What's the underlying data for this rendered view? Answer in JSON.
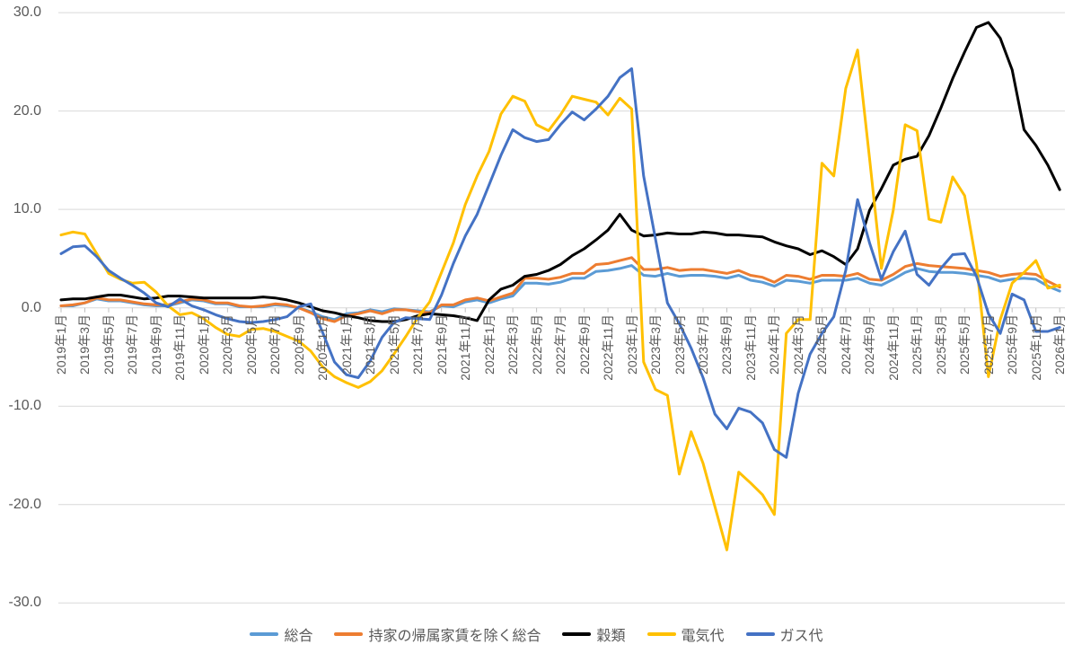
{
  "chart_data": {
    "type": "line",
    "title": "",
    "xlabel": "",
    "ylabel": "",
    "ylim": [
      -30,
      30
    ],
    "grid": true,
    "legend_position": "bottom",
    "colors": {
      "text": "#595959",
      "gridline": "#D9D9D9",
      "tick": "#BFBFBF",
      "background": "#FFFFFF"
    },
    "y_ticks": [
      {
        "label": "30.0",
        "value": 30
      },
      {
        "label": "20.0",
        "value": 20
      },
      {
        "label": "10.0",
        "value": 10
      },
      {
        "label": "0.0",
        "value": 0
      },
      {
        "label": "-10.0",
        "value": -10
      },
      {
        "label": "-20.0",
        "value": -20
      },
      {
        "label": "-30.0",
        "value": -30
      }
    ],
    "x_unit": "month",
    "x_start": "2019年1月",
    "x_end": "2026年1月",
    "x_labels": [
      "2019年1月",
      "2019年3月",
      "2019年5月",
      "2019年7月",
      "2019年9月",
      "2019年11月",
      "2020年1月",
      "2020年3月",
      "2020年5月",
      "2020年7月",
      "2020年9月",
      "2020年11月",
      "2021年1月",
      "2021年3月",
      "2021年5月",
      "2021年7月",
      "2021年9月",
      "2021年11月",
      "2022年1月",
      "2022年3月",
      "2022年5月",
      "2022年7月",
      "2022年9月",
      "2022年11月",
      "2023年1月",
      "2023年3月",
      "2023年5月",
      "2023年7月",
      "2023年9月",
      "2023年11月",
      "2024年1月",
      "2024年3月",
      "2024年5月",
      "2024年7月",
      "2024年9月",
      "2024年11月",
      "2025年1月",
      "2025年3月",
      "2025年5月",
      "2025年7月",
      "2025年9月",
      "2025年11月",
      "2026年1月"
    ],
    "label_every_n_months": 2,
    "series": [
      {
        "name": "総合",
        "color": "#5B9BD5",
        "values": [
          0.2,
          0.2,
          0.5,
          0.9,
          0.7,
          0.7,
          0.5,
          0.3,
          0.2,
          0.2,
          0.5,
          0.8,
          0.7,
          0.4,
          0.4,
          0.1,
          0.1,
          0.1,
          0.3,
          0.2,
          0.0,
          -0.4,
          -0.9,
          -1.2,
          -0.6,
          -0.5,
          -0.2,
          -0.4,
          -0.1,
          -0.2,
          -0.3,
          -0.4,
          0.2,
          0.1,
          0.6,
          0.8,
          0.5,
          0.9,
          1.2,
          2.5,
          2.5,
          2.4,
          2.6,
          3.0,
          3.0,
          3.7,
          3.8,
          4.0,
          4.3,
          3.3,
          3.2,
          3.5,
          3.2,
          3.3,
          3.3,
          3.2,
          3.0,
          3.3,
          2.8,
          2.6,
          2.2,
          2.8,
          2.7,
          2.5,
          2.8,
          2.8,
          2.8,
          3.0,
          2.5,
          2.3,
          2.9,
          3.6,
          4.0,
          3.7,
          3.6,
          3.6,
          3.5,
          3.3,
          3.1,
          2.7,
          2.9,
          3.0,
          2.9,
          2.2,
          1.7
        ]
      },
      {
        "name": "持家の帰属家賃を除く総合",
        "color": "#ED7D31",
        "values": [
          0.2,
          0.3,
          0.5,
          1.0,
          0.8,
          0.8,
          0.6,
          0.4,
          0.3,
          0.3,
          0.6,
          0.9,
          0.8,
          0.5,
          0.5,
          0.2,
          0.1,
          0.2,
          0.4,
          0.3,
          0.0,
          -0.5,
          -1.1,
          -1.4,
          -0.8,
          -0.6,
          -0.3,
          -0.6,
          -0.2,
          -0.2,
          -0.4,
          -0.5,
          0.3,
          0.3,
          0.8,
          1.0,
          0.7,
          1.1,
          1.5,
          3.0,
          3.0,
          2.9,
          3.1,
          3.5,
          3.5,
          4.4,
          4.5,
          4.8,
          5.1,
          3.9,
          3.9,
          4.1,
          3.8,
          3.9,
          3.9,
          3.7,
          3.5,
          3.8,
          3.3,
          3.1,
          2.6,
          3.3,
          3.2,
          2.9,
          3.3,
          3.3,
          3.2,
          3.5,
          2.9,
          2.8,
          3.4,
          4.2,
          4.5,
          4.3,
          4.2,
          4.1,
          4.0,
          3.8,
          3.6,
          3.2,
          3.4,
          3.5,
          3.4,
          2.7,
          2.1
        ]
      },
      {
        "name": "穀類",
        "color": "#000000",
        "values": [
          0.8,
          0.9,
          0.9,
          1.1,
          1.3,
          1.3,
          1.1,
          0.9,
          1.0,
          1.2,
          1.2,
          1.1,
          1.0,
          1.0,
          1.0,
          1.0,
          1.0,
          1.1,
          1.0,
          0.8,
          0.5,
          0.1,
          -0.3,
          -0.5,
          -0.8,
          -1.0,
          -1.3,
          -1.4,
          -1.4,
          -1.2,
          -0.8,
          -0.6,
          -0.7,
          -0.8,
          -1.0,
          -1.3,
          0.8,
          1.9,
          2.3,
          3.2,
          3.4,
          3.8,
          4.4,
          5.3,
          6.0,
          6.9,
          7.9,
          9.5,
          7.9,
          7.3,
          7.4,
          7.6,
          7.5,
          7.5,
          7.7,
          7.6,
          7.4,
          7.4,
          7.3,
          7.2,
          6.7,
          6.3,
          6.0,
          5.4,
          5.8,
          5.2,
          4.4,
          6.0,
          9.9,
          12.1,
          14.5,
          15.1,
          15.4,
          17.5,
          20.3,
          23.3,
          26.0,
          28.5,
          29.0,
          27.4,
          24.2,
          18.1,
          16.5,
          14.5,
          12.0
        ]
      },
      {
        "name": "電気代",
        "color": "#FFC000",
        "values": [
          7.4,
          7.7,
          7.5,
          5.5,
          3.5,
          2.9,
          2.5,
          2.6,
          1.6,
          0.2,
          -0.7,
          -0.5,
          -1.1,
          -2.0,
          -2.7,
          -2.9,
          -2.2,
          -2.1,
          -2.4,
          -2.9,
          -3.4,
          -4.4,
          -6.0,
          -7.0,
          -7.6,
          -8.1,
          -7.5,
          -6.4,
          -4.7,
          -2.9,
          -1.0,
          0.6,
          3.6,
          6.6,
          10.5,
          13.4,
          15.9,
          19.7,
          21.5,
          21.0,
          18.6,
          18.0,
          19.6,
          21.5,
          21.2,
          20.9,
          19.6,
          21.3,
          20.2,
          -5.5,
          -8.3,
          -8.9,
          -16.9,
          -12.6,
          -15.8,
          -20.2,
          -24.6,
          -16.7,
          -17.8,
          -19.0,
          -21.0,
          -2.6,
          -1.2,
          -1.2,
          14.7,
          13.4,
          22.3,
          26.2,
          15.2,
          4.0,
          9.9,
          18.6,
          18.0,
          9.0,
          8.7,
          13.3,
          11.4,
          4.5,
          -7.0,
          -1.2,
          2.5,
          3.6,
          4.8,
          2.0,
          2.3
        ]
      },
      {
        "name": "ガス代",
        "color": "#4472C4",
        "values": [
          5.5,
          6.2,
          6.3,
          5.2,
          3.8,
          3.0,
          2.3,
          1.5,
          0.5,
          0.1,
          0.9,
          0.2,
          -0.2,
          -0.7,
          -1.1,
          -1.4,
          -1.5,
          -1.4,
          -1.2,
          -0.9,
          0.1,
          0.4,
          -2.5,
          -5.5,
          -6.8,
          -7.1,
          -5.4,
          -3.0,
          -1.5,
          -1.0,
          -1.1,
          -1.2,
          1.3,
          4.5,
          7.3,
          9.5,
          12.5,
          15.5,
          18.1,
          17.3,
          16.9,
          17.1,
          18.6,
          19.9,
          19.1,
          20.2,
          21.5,
          23.4,
          24.3,
          13.4,
          7.0,
          0.5,
          -1.6,
          -4.1,
          -7.1,
          -10.8,
          -12.3,
          -10.2,
          -10.6,
          -11.7,
          -14.4,
          -15.2,
          -8.7,
          -4.7,
          -2.6,
          -0.9,
          3.8,
          11.0,
          6.6,
          2.9,
          5.7,
          7.8,
          3.4,
          2.3,
          4.0,
          5.4,
          5.5,
          3.2,
          -0.6,
          -2.6,
          1.4,
          0.8,
          -2.4,
          -2.4,
          -2.0
        ]
      }
    ]
  }
}
